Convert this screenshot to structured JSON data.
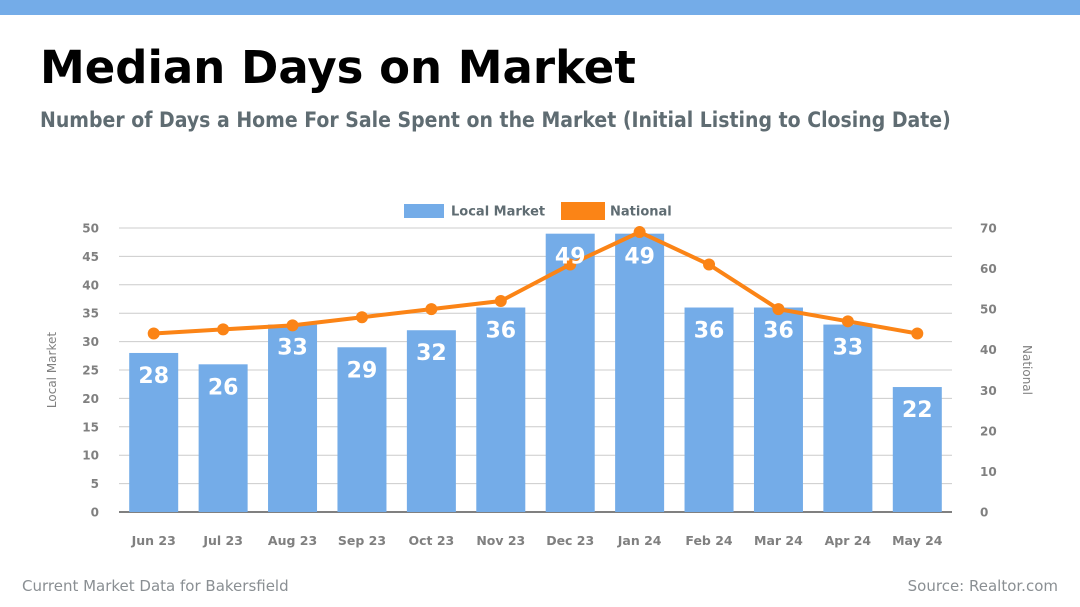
{
  "header": {
    "title": "Median Days on Market",
    "subtitle": "Number of Days a Home For Sale Spent on the Market (Initial Listing to Closing Date)"
  },
  "footer": {
    "left": "Current Market Data for Bakersfield",
    "right": "Source: Realtor.com"
  },
  "colors": {
    "top_bar": "#74ace8",
    "local": "#74ace8",
    "national": "#fb8416",
    "grid": "#cccccc",
    "axis_text": "#808080"
  },
  "chart_data": {
    "type": "bar",
    "categories": [
      "Jun 23",
      "Jul 23",
      "Aug 23",
      "Sep 23",
      "Oct 23",
      "Nov 23",
      "Dec 23",
      "Jan 24",
      "Feb 24",
      "Mar 24",
      "Apr 24",
      "May 24"
    ],
    "series": [
      {
        "name": "Local Market",
        "type": "bar",
        "axis": "left",
        "values": [
          28,
          26,
          33,
          29,
          32,
          36,
          49,
          49,
          36,
          36,
          33,
          22
        ]
      },
      {
        "name": "National",
        "type": "line",
        "axis": "right",
        "values": [
          44,
          45,
          46,
          48,
          50,
          52,
          61,
          69,
          61,
          50,
          47,
          44
        ]
      }
    ],
    "ylabel": "Local Market",
    "y2label": "National",
    "ylim": [
      0,
      50
    ],
    "y2lim": [
      0,
      70
    ],
    "yticks": [
      0,
      5,
      10,
      15,
      20,
      25,
      30,
      35,
      40,
      45,
      50
    ],
    "y2ticks": [
      0,
      10,
      20,
      30,
      40,
      50,
      60,
      70
    ],
    "data_labels": true,
    "grid": true,
    "legend_position": "top-center"
  }
}
